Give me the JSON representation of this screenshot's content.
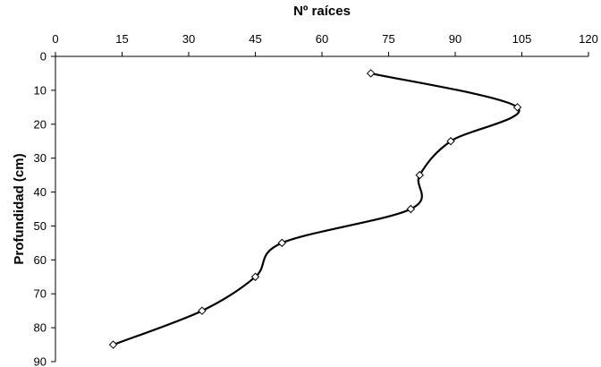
{
  "chart_data": {
    "type": "line",
    "title": "",
    "xlabel": "Nº raíces",
    "ylabel": "Profundidad (cm)",
    "x_axis_position": "top",
    "y_axis_inverted": true,
    "xlim": [
      0,
      120
    ],
    "ylim": [
      0,
      90
    ],
    "x_ticks": [
      0,
      15,
      30,
      45,
      60,
      75,
      90,
      105,
      120
    ],
    "y_ticks": [
      0,
      10,
      20,
      30,
      40,
      50,
      60,
      70,
      80,
      90
    ],
    "grid": false,
    "legend": "none",
    "marker": "diamond-open",
    "smooth": true,
    "line_color": "#000000",
    "series": [
      {
        "points": [
          {
            "x": 71,
            "y": 5
          },
          {
            "x": 104,
            "y": 15
          },
          {
            "x": 89,
            "y": 25
          },
          {
            "x": 82,
            "y": 35
          },
          {
            "x": 80,
            "y": 45
          },
          {
            "x": 51,
            "y": 55
          },
          {
            "x": 45,
            "y": 65
          },
          {
            "x": 33,
            "y": 75
          },
          {
            "x": 13,
            "y": 85
          }
        ]
      }
    ]
  }
}
